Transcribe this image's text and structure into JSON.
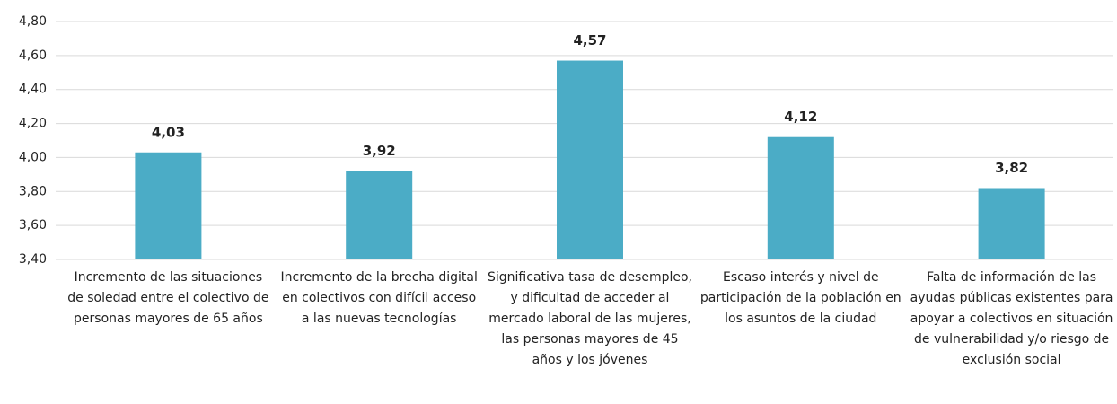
{
  "chart_data": {
    "type": "bar",
    "categories": [
      "Incremento de las situaciones de soledad entre el colectivo de personas mayores de 65 años",
      "Incremento de la brecha digital en colectivos con difícil acceso a las nuevas tecnologías",
      "Significativa tasa de desempleo, y dificultad de acceder al mercado laboral de las mujeres, las personas mayores de 45 años y los jóvenes",
      "Escaso interés y nivel de participación de la población en los asuntos de la ciudad",
      "Falta de información de las ayudas públicas existentes para apoyar a colectivos en situación de vulnerabilidad y/o riesgo de exclusión social"
    ],
    "values": [
      4.03,
      3.92,
      4.57,
      4.12,
      3.82
    ],
    "value_labels": [
      "4,03",
      "3,92",
      "4,57",
      "4,12",
      "3,82"
    ],
    "color": "#4bacc6",
    "ylim": [
      3.4,
      4.8
    ],
    "yticks": [
      {
        "value": 3.4,
        "label": "3,40"
      },
      {
        "value": 3.6,
        "label": "3,60"
      },
      {
        "value": 3.8,
        "label": "3,80"
      },
      {
        "value": 4.0,
        "label": "4,00"
      },
      {
        "value": 4.2,
        "label": "4,20"
      },
      {
        "value": 4.4,
        "label": "4,40"
      },
      {
        "value": 4.6,
        "label": "4,60"
      },
      {
        "value": 4.8,
        "label": "4,80"
      }
    ],
    "grid": true
  }
}
